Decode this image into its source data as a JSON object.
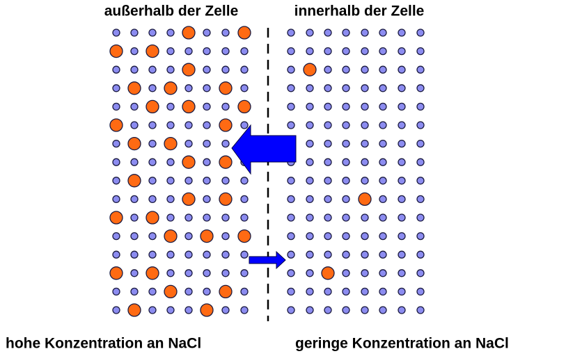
{
  "header": {
    "left": "außerhalb der Zelle",
    "right": "innerhalb der Zelle"
  },
  "footer": {
    "left": "hohe Konzentration an NaCl",
    "right": "geringe Konzentration an NaCl"
  }
}
